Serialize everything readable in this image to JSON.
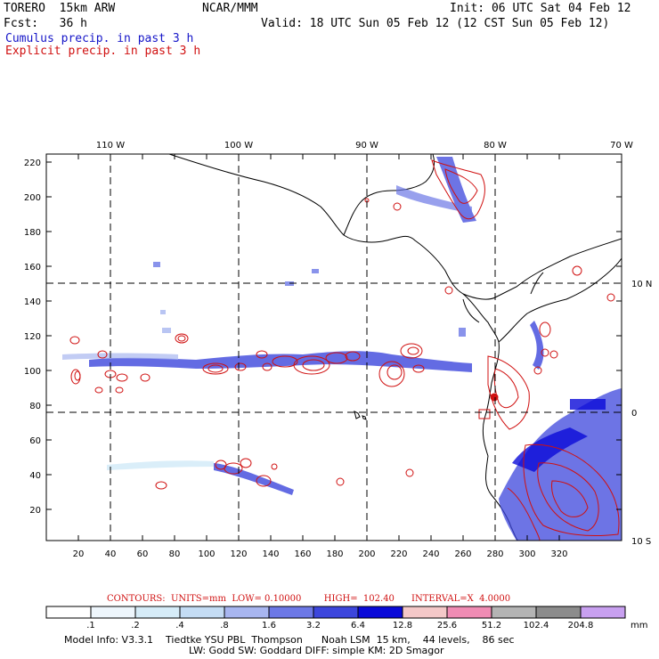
{
  "header": {
    "model": "TORERO  15km ARW",
    "org": "NCAR/MMM",
    "init": "Init: 06 UTC Sat 04 Feb 12",
    "fcst": "Fcst:   36 h",
    "valid": "Valid: 18 UTC Sun 05 Feb 12 (12 CST Sun 05 Feb 12)",
    "cumulus_label": "Cumulus precip. in past 3 h",
    "explicit_label": "Explicit precip. in past 3 h"
  },
  "colors": {
    "cumulus": "#1515c8",
    "explicit": "#d01010"
  },
  "map": {
    "top_labels": [
      "110 W",
      "100 W",
      "90 W",
      "80 W",
      "70 W"
    ],
    "right_labels": [
      "10 N",
      "0",
      "10 S"
    ],
    "y_ticks": [
      "220",
      "200",
      "180",
      "160",
      "140",
      "120",
      "100",
      "80",
      "60",
      "40",
      "20"
    ],
    "x_ticks": [
      "20",
      "40",
      "60",
      "80",
      "100",
      "120",
      "140",
      "160",
      "180",
      "200",
      "220",
      "240",
      "260",
      "280",
      "300",
      "320"
    ]
  },
  "legend": {
    "contours_text": "CONTOURS:  UNITS=mm  LOW= 0.10000        HIGH=  102.40      INTERVAL=X  4.0000",
    "labels": [
      ".1",
      ".2",
      ".4",
      ".8",
      "1.6",
      "3.2",
      "6.4",
      "12.8",
      "25.6",
      "51.2",
      "102.4",
      "204.8"
    ],
    "unit": "mm",
    "colors": [
      "#ffffff",
      "#eef6fc",
      "#d6ecf8",
      "#c4dcf4",
      "#a8b6f0",
      "#6c78e6",
      "#3c46dc",
      "#0a0ad8",
      "#f4c8c8",
      "#f08cb4",
      "#b4b4b4",
      "#8c8c8c",
      "#c8a0f0"
    ]
  },
  "footer": {
    "model_info": "Model Info: V3.3.1    Tiedtke YSU PBL  Thompson      Noah LSM  15 km,    44 levels,    86 sec",
    "physics": "LW: Godd SW: Goddard DIFF: simple KM: 2D Smagor"
  }
}
